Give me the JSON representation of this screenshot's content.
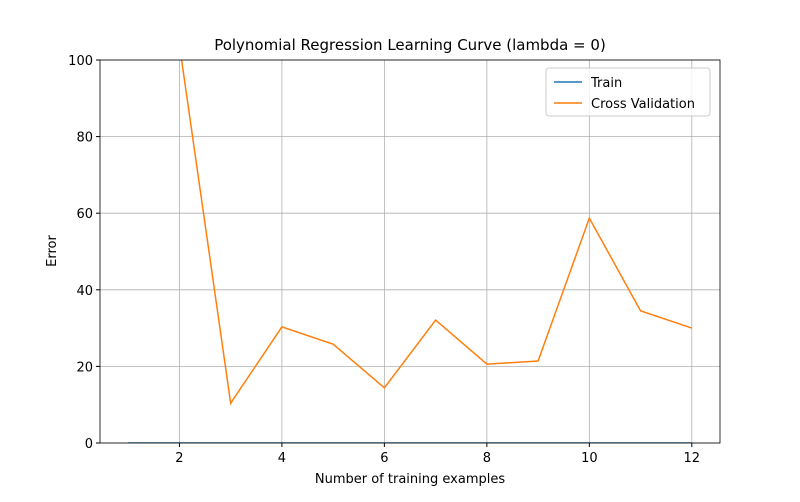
{
  "chart_data": {
    "type": "line",
    "title": "Polynomial Regression Learning Curve (lambda = 0)",
    "x_label": "Number of training examples",
    "y_label": "Error",
    "x": [
      1,
      2,
      3,
      4,
      5,
      6,
      7,
      8,
      9,
      10,
      11,
      12
    ],
    "series": [
      {
        "name": "Train",
        "color": "#1f77b4",
        "values": [
          0,
          0,
          0,
          0,
          0,
          0,
          0,
          0,
          0,
          0,
          0,
          0
        ]
      },
      {
        "name": "Cross Validation",
        "color": "#ff7f0e",
        "values": [
          null,
          104,
          10.4,
          30.3,
          25.8,
          14.4,
          32.1,
          20.6,
          21.4,
          58.7,
          34.5,
          30.0
        ]
      }
    ],
    "xlim": [
      0.45,
      12.55
    ],
    "ylim": [
      0,
      100
    ],
    "xticks": [
      2,
      4,
      6,
      8,
      10,
      12
    ],
    "yticks": [
      0,
      20,
      40,
      60,
      80,
      100
    ],
    "grid": true,
    "legend": "upper right"
  }
}
